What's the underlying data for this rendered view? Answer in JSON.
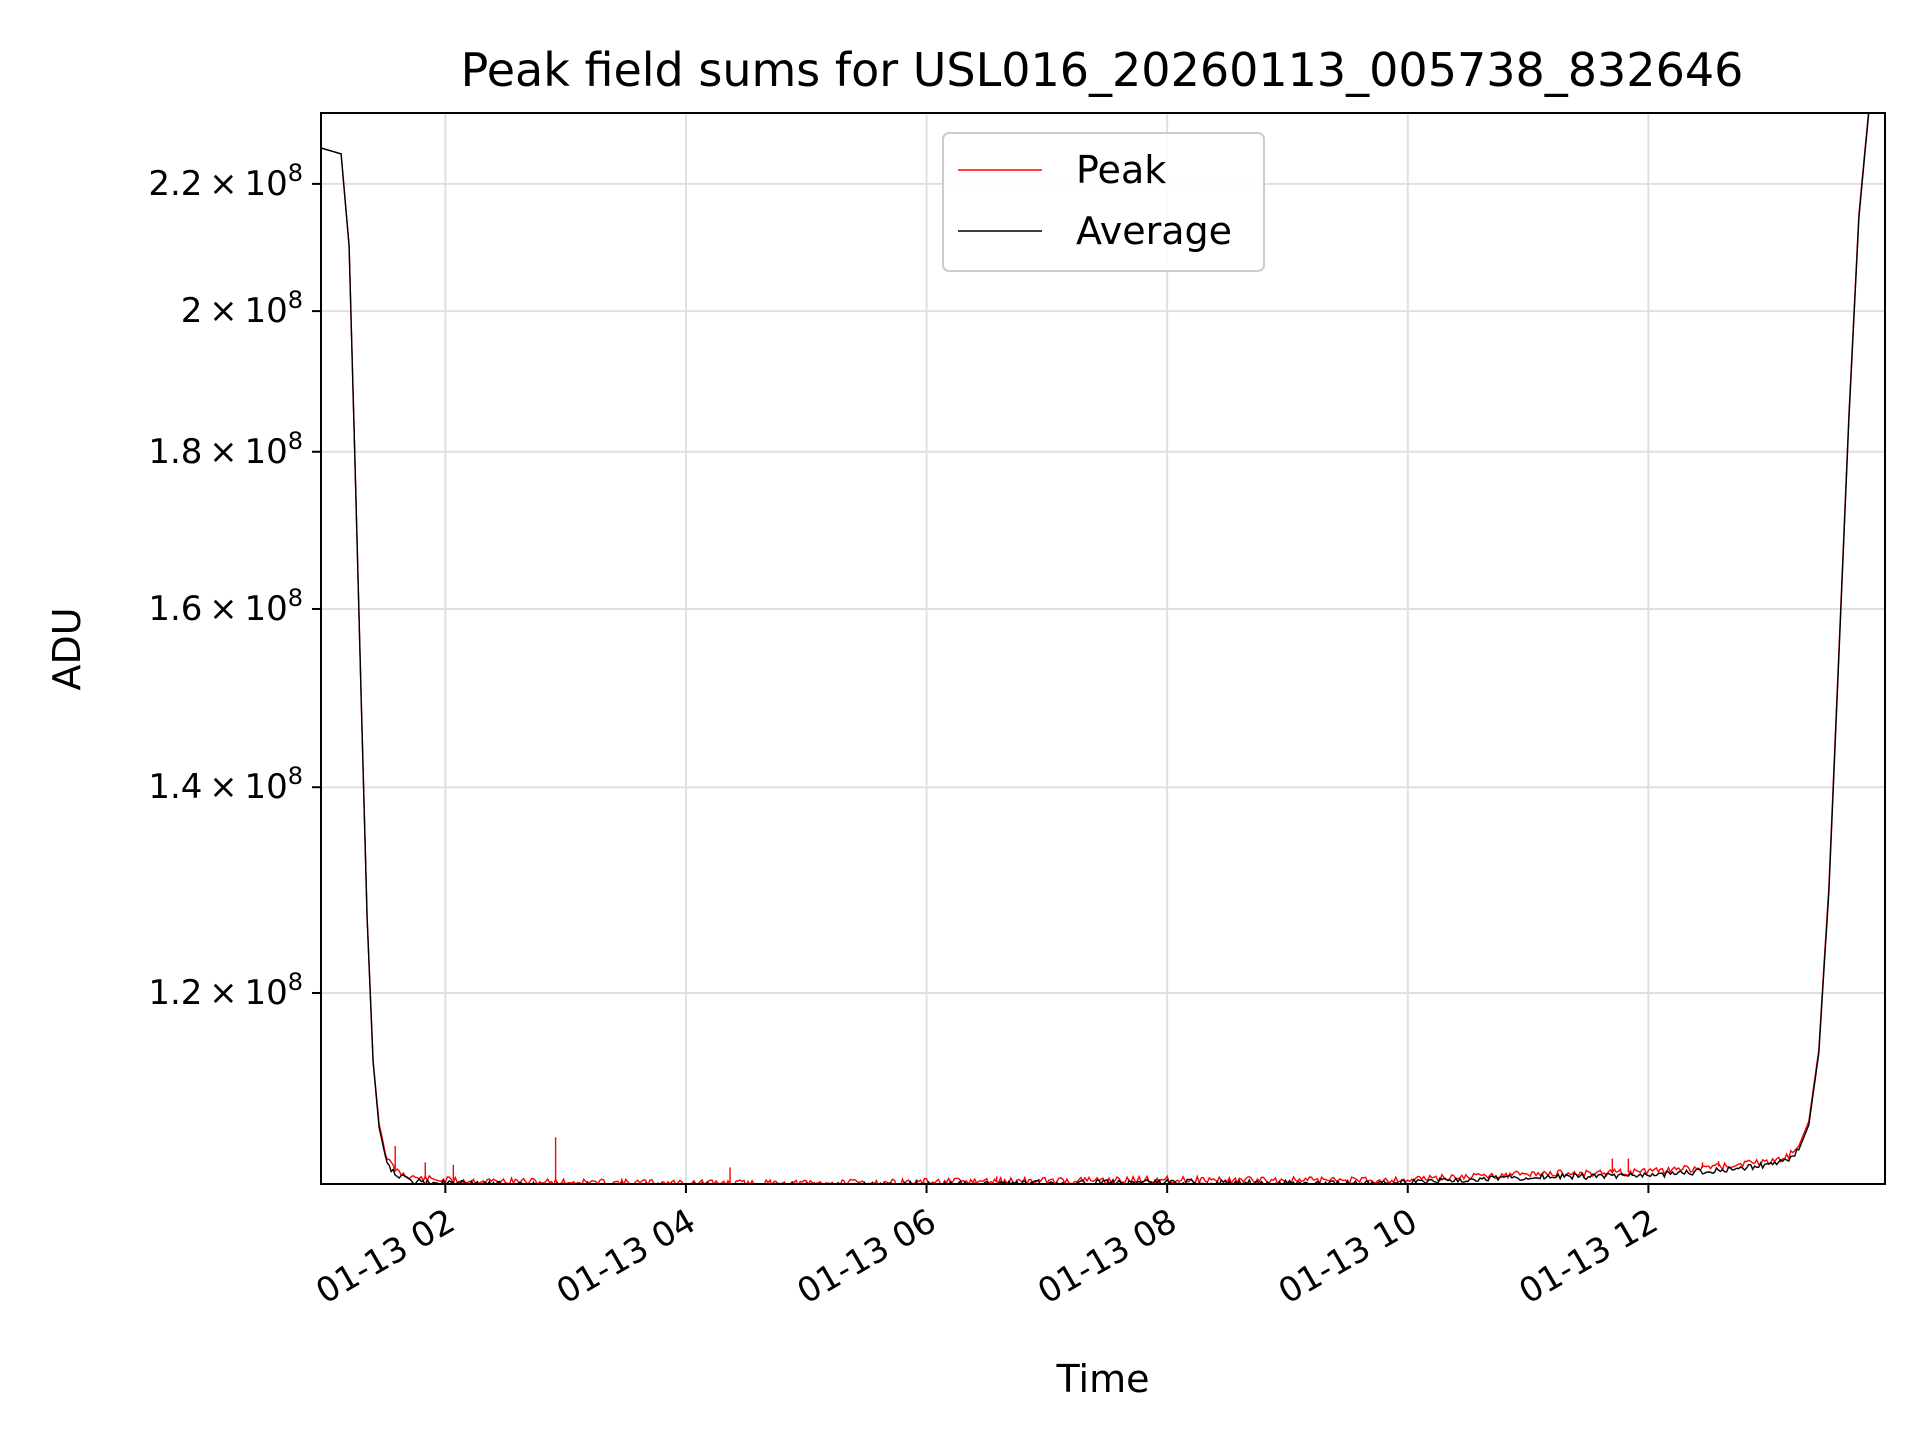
{
  "chart_data": {
    "type": "line",
    "title": "Peak field sums for USL016_20260113_005738_832646",
    "xlabel": "Time",
    "ylabel": "ADU",
    "y_scale": "log",
    "xlim": [
      "2026-01-13T00:58",
      "2026-01-13T13:58"
    ],
    "ylim": [
      104000000,
      232000000
    ],
    "grid": true,
    "legend_position": "top-center",
    "x_ticks": [
      "01-13 02",
      "01-13 04",
      "01-13 06",
      "01-13 08",
      "01-13 10",
      "01-13 12"
    ],
    "y_ticks": [
      {
        "value": 120000000,
        "mantissa": "1.2"
      },
      {
        "value": 140000000,
        "mantissa": "1.4"
      },
      {
        "value": 160000000,
        "mantissa": "1.6"
      },
      {
        "value": 180000000,
        "mantissa": "1.8"
      },
      {
        "value": 200000000,
        "mantissa": "2"
      },
      {
        "value": 220000000,
        "mantissa": "2.2"
      }
    ],
    "y_tick_base": "10",
    "y_tick_exponent": "8",
    "x": [
      "2026-01-13T00:58",
      "2026-01-13T01:08",
      "2026-01-13T01:12",
      "2026-01-13T01:15",
      "2026-01-13T01:18",
      "2026-01-13T01:21",
      "2026-01-13T01:24",
      "2026-01-13T01:27",
      "2026-01-13T01:30",
      "2026-01-13T01:33",
      "2026-01-13T01:36",
      "2026-01-13T01:40",
      "2026-01-13T01:45",
      "2026-01-13T01:50",
      "2026-01-13T02:00",
      "2026-01-13T02:30",
      "2026-01-13T03:00",
      "2026-01-13T03:30",
      "2026-01-13T04:00",
      "2026-01-13T04:30",
      "2026-01-13T05:00",
      "2026-01-13T05:30",
      "2026-01-13T06:00",
      "2026-01-13T06:30",
      "2026-01-13T07:00",
      "2026-01-13T07:30",
      "2026-01-13T08:00",
      "2026-01-13T08:30",
      "2026-01-13T09:00",
      "2026-01-13T09:30",
      "2026-01-13T10:00",
      "2026-01-13T10:30",
      "2026-01-13T11:00",
      "2026-01-13T11:30",
      "2026-01-13T12:00",
      "2026-01-13T12:30",
      "2026-01-13T13:00",
      "2026-01-13T13:10",
      "2026-01-13T13:15",
      "2026-01-13T13:20",
      "2026-01-13T13:25",
      "2026-01-13T13:30",
      "2026-01-13T13:35",
      "2026-01-13T13:40",
      "2026-01-13T13:45",
      "2026-01-13T13:50",
      "2026-01-13T13:52"
    ],
    "series": [
      {
        "name": "Peak",
        "color": "#ff0000",
        "values": [
          226000000,
          225000000,
          210000000,
          178000000,
          150000000,
          127000000,
          114000000,
          108800000,
          106500000,
          105500000,
          105000000,
          104700000,
          104500000,
          104400000,
          104300000,
          104200000,
          104150000,
          104100000,
          104100000,
          104050000,
          104050000,
          104100000,
          104150000,
          104200000,
          104250000,
          104300000,
          104350000,
          104300000,
          104300000,
          104300000,
          104350000,
          104600000,
          104800000,
          104850000,
          104950000,
          105300000,
          105800000,
          106200000,
          107000000,
          109000000,
          115000000,
          130000000,
          155000000,
          185000000,
          215000000,
          233000000,
          234000000
        ],
        "spikes": [
          {
            "x": "2026-01-13T01:35",
            "value": 107000000
          },
          {
            "x": "2026-01-13T01:50",
            "value": 105700000
          },
          {
            "x": "2026-01-13T02:04",
            "value": 105500000
          },
          {
            "x": "2026-01-13T02:55",
            "value": 107700000
          },
          {
            "x": "2026-01-13T04:22",
            "value": 105300000
          },
          {
            "x": "2026-01-13T06:35",
            "value": 104600000
          },
          {
            "x": "2026-01-13T11:42",
            "value": 106000000
          },
          {
            "x": "2026-01-13T11:50",
            "value": 106000000
          },
          {
            "x": "2026-01-13T12:27",
            "value": 105700000
          },
          {
            "x": "2026-01-13T12:35",
            "value": 105800000
          }
        ]
      },
      {
        "name": "Average",
        "color": "#000000",
        "values": [
          226000000,
          225000000,
          210000000,
          178000000,
          150000000,
          127000000,
          114000000,
          108500000,
          106200000,
          105200000,
          104700000,
          104400000,
          104200000,
          104100000,
          104050000,
          103950000,
          103900000,
          103880000,
          103870000,
          103850000,
          103850000,
          103900000,
          103950000,
          104000000,
          104050000,
          104100000,
          104150000,
          104100000,
          104050000,
          104050000,
          104100000,
          104350000,
          104550000,
          104600000,
          104700000,
          105000000,
          105500000,
          105900000,
          106700000,
          108700000,
          114700000,
          129500000,
          154500000,
          184500000,
          214500000,
          232500000,
          233500000
        ]
      }
    ]
  }
}
